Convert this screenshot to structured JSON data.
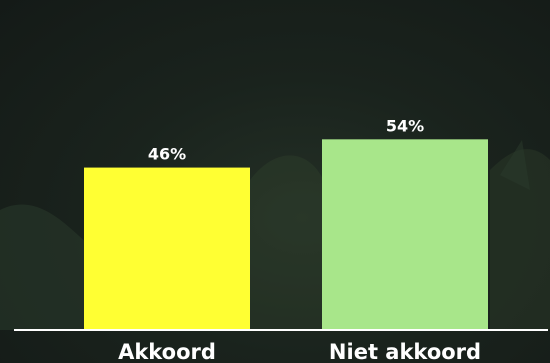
{
  "chart_data": {
    "type": "bar",
    "categories": [
      "Akkoord",
      "Niet akkoord"
    ],
    "values": [
      46,
      54
    ],
    "value_labels": [
      "46%",
      "54%"
    ],
    "unit": "%",
    "ylim": [
      0,
      100
    ],
    "grid": false,
    "legend": "none",
    "colors": [
      "#ffff33",
      "#a8e68a"
    ],
    "baseline_color": "#ffffff"
  }
}
